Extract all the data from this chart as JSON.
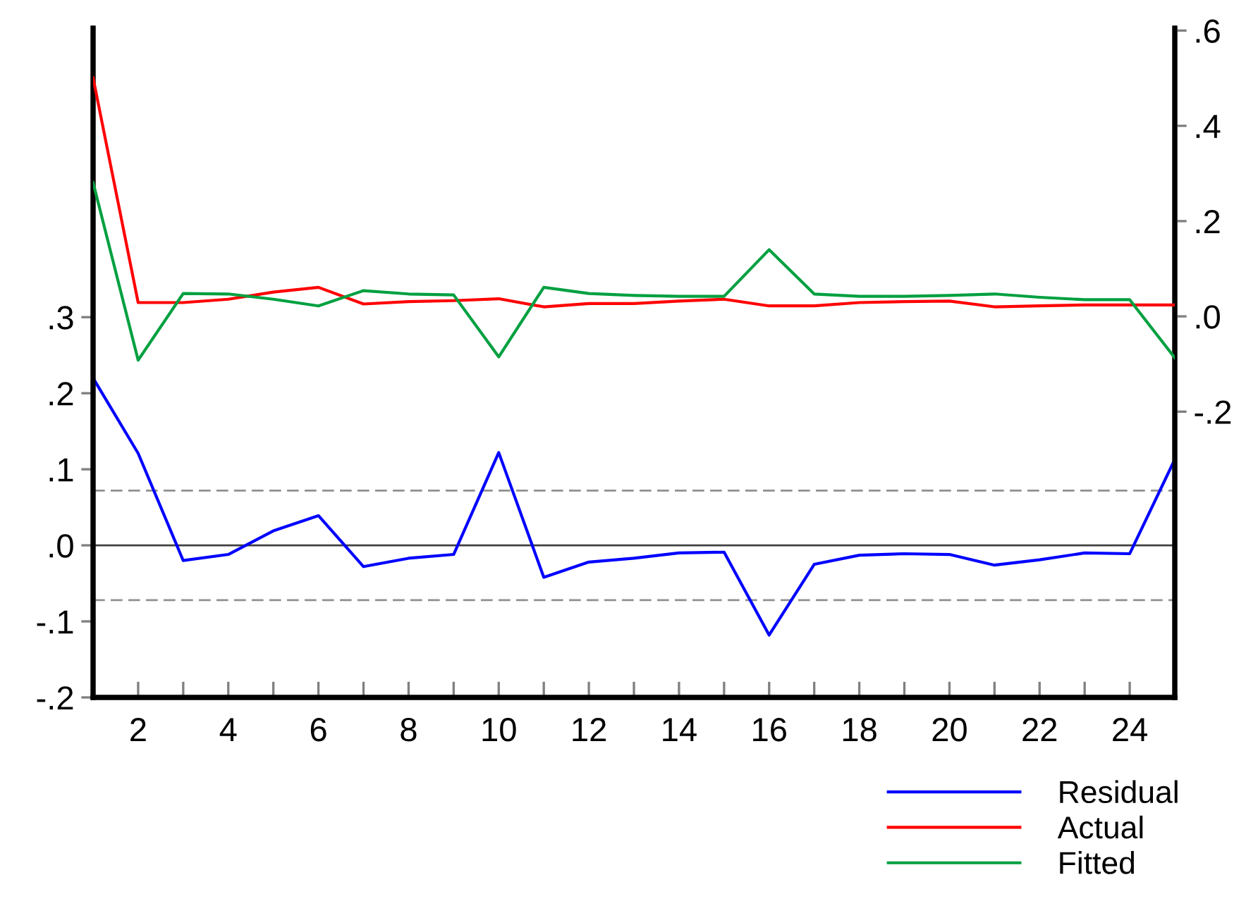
{
  "chart_data": {
    "type": "line",
    "x": [
      1,
      2,
      3,
      4,
      5,
      6,
      7,
      8,
      9,
      10,
      11,
      12,
      13,
      14,
      15,
      16,
      17,
      18,
      19,
      20,
      21,
      22,
      23,
      24,
      25
    ],
    "series": [
      {
        "name": "Residual",
        "color": "#0000ff",
        "values": [
          0.22,
          0.121,
          -0.02,
          -0.012,
          0.019,
          0.039,
          -0.028,
          -0.017,
          -0.012,
          0.122,
          -0.042,
          -0.022,
          -0.017,
          -0.01,
          -0.009,
          -0.118,
          -0.025,
          -0.013,
          -0.011,
          -0.012,
          -0.026,
          -0.019,
          -0.01,
          -0.011,
          0.113
        ]
      },
      {
        "name": "Actual",
        "color": "#ff0000",
        "axis": "y2",
        "values": [
          0.501,
          0.029,
          0.029,
          0.036,
          0.051,
          0.061,
          0.026,
          0.031,
          0.033,
          0.037,
          0.02,
          0.027,
          0.027,
          0.032,
          0.036,
          0.022,
          0.022,
          0.029,
          0.031,
          0.032,
          0.02,
          0.022,
          0.024,
          0.024,
          0.024
        ]
      },
      {
        "name": "Fitted",
        "color": "#00a040",
        "axis": "y2",
        "values": [
          0.281,
          -0.092,
          0.048,
          0.047,
          0.036,
          0.022,
          0.054,
          0.047,
          0.045,
          -0.085,
          0.061,
          0.048,
          0.044,
          0.042,
          0.042,
          0.14,
          0.047,
          0.042,
          0.042,
          0.044,
          0.047,
          0.04,
          0.035,
          0.035,
          -0.087
        ]
      }
    ],
    "xlim": [
      1,
      25
    ],
    "xticks": [
      {
        "value": 1,
        "label": null
      },
      2,
      {
        "value": 3,
        "label": null
      },
      4,
      {
        "value": 5,
        "label": null
      },
      6,
      {
        "value": 7,
        "label": null
      },
      8,
      {
        "value": 9,
        "label": null
      },
      10,
      {
        "value": 11,
        "label": null
      },
      12,
      {
        "value": 13,
        "label": null
      },
      14,
      {
        "value": 15,
        "label": null
      },
      16,
      {
        "value": 17,
        "label": null
      },
      18,
      {
        "value": 19,
        "label": null
      },
      20,
      {
        "value": 21,
        "label": null
      },
      22,
      {
        "value": 23,
        "label": null
      },
      24,
      {
        "value": 25,
        "label": null
      }
    ],
    "ylim": [
      -0.2,
      0.68
    ],
    "yticks": [
      {
        "value": -0.2,
        "label": "-.2"
      },
      {
        "value": -0.1,
        "label": "-.1"
      },
      {
        "value": 0,
        "label": ".0"
      },
      {
        "value": 0.1,
        "label": ".1"
      },
      {
        "value": 0.2,
        "label": ".2"
      },
      {
        "value": 0.3,
        "label": ".3"
      }
    ],
    "y2lim": [
      -0.8,
      0.605
    ],
    "y2ticks": [
      {
        "value": -0.2,
        "label": "-.2"
      },
      {
        "value": 0,
        "label": ".0"
      },
      {
        "value": 0.2,
        "label": ".2"
      },
      {
        "value": 0.4,
        "label": ".4"
      },
      {
        "value": 0.6,
        "label": ".6"
      }
    ],
    "ref_lines": [
      {
        "axis": "y",
        "value": 0,
        "color": "#404040",
        "line_style": "solid"
      },
      {
        "axis": "y",
        "value": 0.072,
        "color": "#909090",
        "line_style": "dashed"
      },
      {
        "axis": "y",
        "value": -0.072,
        "color": "#909090",
        "line_style": "dashed"
      }
    ],
    "grid": false,
    "legend": "bottom right",
    "marker": "none",
    "line_style": "solid"
  }
}
